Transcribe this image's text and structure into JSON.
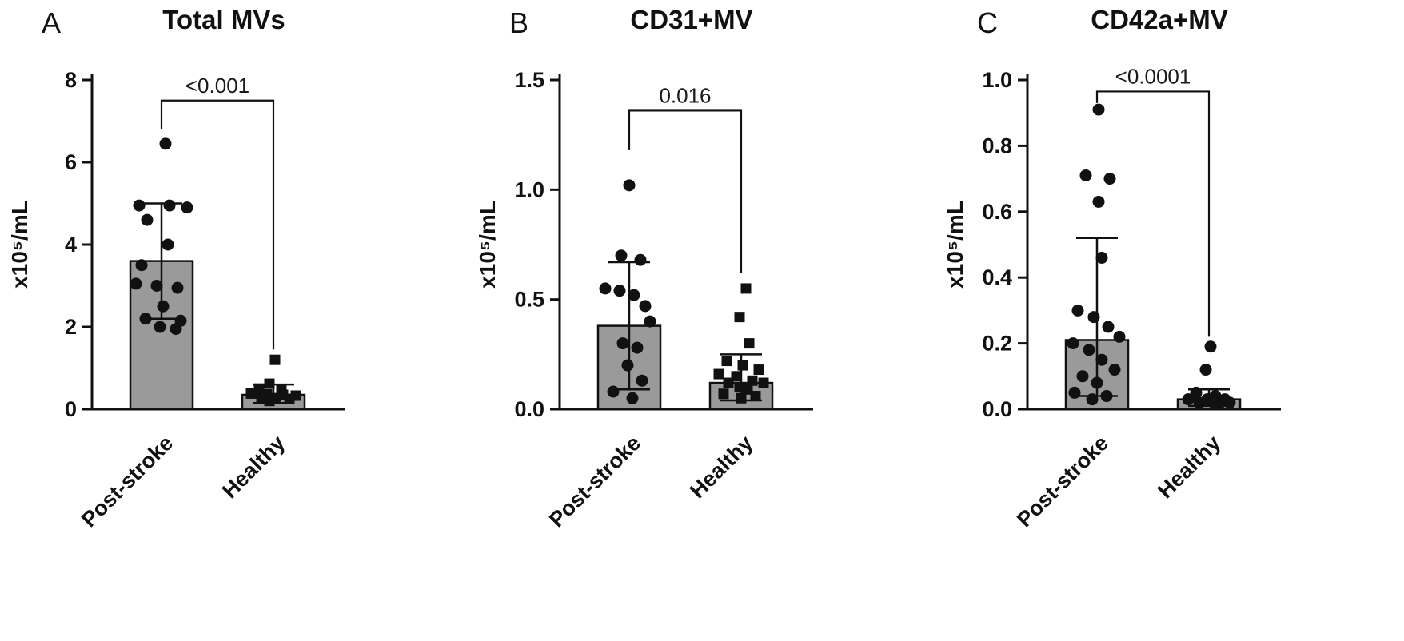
{
  "style": {
    "ink": "#111111",
    "bar_fill": "#9a9a9a",
    "background": "#ffffff"
  },
  "chart_data": [
    {
      "type": "bar",
      "panel": "A",
      "title": "Total MVs",
      "ylabel": "x10⁵/mL",
      "categories": [
        "Post-stroke",
        "Healthy"
      ],
      "ylim": [
        0,
        8
      ],
      "yticks": [
        0,
        2,
        4,
        6,
        8
      ],
      "ytick_labels": [
        "0",
        "2",
        "4",
        "6",
        "8"
      ],
      "legend": "none",
      "grid": false,
      "series": [
        {
          "name": "Post-stroke",
          "marker": "circle",
          "bar": 3.6,
          "err_low": 2.2,
          "err_high": 5.0,
          "points": [
            [
              5,
              6.45
            ],
            [
              -28,
              4.95
            ],
            [
              10,
              4.95
            ],
            [
              32,
              4.9
            ],
            [
              -18,
              4.6
            ],
            [
              8,
              4.0
            ],
            [
              -25,
              3.5
            ],
            [
              -32,
              3.05
            ],
            [
              -6,
              3.0
            ],
            [
              20,
              2.95
            ],
            [
              2,
              2.5
            ],
            [
              -20,
              2.2
            ],
            [
              24,
              2.15
            ],
            [
              -2,
              2.0
            ],
            [
              18,
              1.95
            ]
          ]
        },
        {
          "name": "Healthy",
          "marker": "square",
          "bar": 0.35,
          "err_low": 0.15,
          "err_high": 0.6,
          "points": [
            [
              2,
              1.2
            ],
            [
              -5,
              0.62
            ],
            [
              -18,
              0.5
            ],
            [
              10,
              0.48
            ],
            [
              -28,
              0.38
            ],
            [
              -8,
              0.36
            ],
            [
              12,
              0.35
            ],
            [
              28,
              0.33
            ],
            [
              -15,
              0.28
            ],
            [
              3,
              0.27
            ],
            [
              20,
              0.25
            ],
            [
              -5,
              0.2
            ]
          ]
        }
      ],
      "significance": {
        "label": "<0.001",
        "bar_y": 7.5,
        "left_drop": 6.8,
        "right_drop": 1.45
      }
    },
    {
      "type": "bar",
      "panel": "B",
      "title": "CD31+MV",
      "ylabel": "x10⁵/mL",
      "categories": [
        "Post-stroke",
        "Healthy"
      ],
      "ylim": [
        0,
        1.5
      ],
      "yticks": [
        0,
        0.5,
        1.0,
        1.5
      ],
      "ytick_labels": [
        "0.0",
        "0.5",
        "1.0",
        "1.5"
      ],
      "legend": "none",
      "grid": false,
      "series": [
        {
          "name": "Post-stroke",
          "marker": "circle",
          "bar": 0.38,
          "err_low": 0.09,
          "err_high": 0.67,
          "points": [
            [
              0,
              1.02
            ],
            [
              -10,
              0.7
            ],
            [
              14,
              0.68
            ],
            [
              -30,
              0.55
            ],
            [
              -12,
              0.54
            ],
            [
              6,
              0.52
            ],
            [
              20,
              0.47
            ],
            [
              26,
              0.4
            ],
            [
              -8,
              0.3
            ],
            [
              10,
              0.28
            ],
            [
              -2,
              0.2
            ],
            [
              16,
              0.13
            ],
            [
              -20,
              0.08
            ],
            [
              4,
              0.05
            ]
          ]
        },
        {
          "name": "Healthy",
          "marker": "square",
          "bar": 0.12,
          "err_low": 0.04,
          "err_high": 0.25,
          "points": [
            [
              6,
              0.55
            ],
            [
              -2,
              0.42
            ],
            [
              10,
              0.3
            ],
            [
              -18,
              0.22
            ],
            [
              2,
              0.2
            ],
            [
              22,
              0.18
            ],
            [
              -28,
              0.16
            ],
            [
              -6,
              0.15
            ],
            [
              14,
              0.13
            ],
            [
              -16,
              0.12
            ],
            [
              28,
              0.12
            ],
            [
              -2,
              0.1
            ],
            [
              8,
              0.09
            ],
            [
              -22,
              0.07
            ],
            [
              18,
              0.06
            ],
            [
              0,
              0.05
            ]
          ]
        }
      ],
      "significance": {
        "label": "0.016",
        "bar_y": 1.36,
        "left_drop": 1.18,
        "right_drop": 0.62
      }
    },
    {
      "type": "bar",
      "panel": "C",
      "title": "CD42a+MV",
      "ylabel": "x10⁵/mL",
      "categories": [
        "Post-stroke",
        "Healthy"
      ],
      "ylim": [
        0,
        1.0
      ],
      "yticks": [
        0,
        0.2,
        0.4,
        0.6,
        0.8,
        1.0
      ],
      "ytick_labels": [
        "0.0",
        "0.2",
        "0.4",
        "0.6",
        "0.8",
        "1.0"
      ],
      "legend": "none",
      "grid": false,
      "series": [
        {
          "name": "Post-stroke",
          "marker": "circle",
          "bar": 0.21,
          "err_low": 0.04,
          "err_high": 0.52,
          "points": [
            [
              2,
              0.91
            ],
            [
              -14,
              0.71
            ],
            [
              16,
              0.7
            ],
            [
              2,
              0.63
            ],
            [
              6,
              0.46
            ],
            [
              -24,
              0.3
            ],
            [
              -4,
              0.28
            ],
            [
              14,
              0.25
            ],
            [
              28,
              0.22
            ],
            [
              -30,
              0.2
            ],
            [
              -10,
              0.18
            ],
            [
              6,
              0.15
            ],
            [
              22,
              0.12
            ],
            [
              -18,
              0.1
            ],
            [
              0,
              0.08
            ],
            [
              -28,
              0.05
            ],
            [
              12,
              0.04
            ],
            [
              -6,
              0.03
            ]
          ]
        },
        {
          "name": "Healthy",
          "marker": "circle",
          "bar": 0.03,
          "err_low": 0.01,
          "err_high": 0.06,
          "points": [
            [
              2,
              0.19
            ],
            [
              -4,
              0.12
            ],
            [
              -16,
              0.05
            ],
            [
              8,
              0.04
            ],
            [
              -26,
              0.03
            ],
            [
              -2,
              0.03
            ],
            [
              20,
              0.03
            ],
            [
              -12,
              0.02
            ],
            [
              6,
              0.02
            ],
            [
              26,
              0.02
            ],
            [
              14,
              0.02
            ]
          ]
        }
      ],
      "significance": {
        "label": "<0.0001",
        "bar_y": 0.965,
        "left_drop": 0.93,
        "right_drop": 0.22
      }
    }
  ]
}
